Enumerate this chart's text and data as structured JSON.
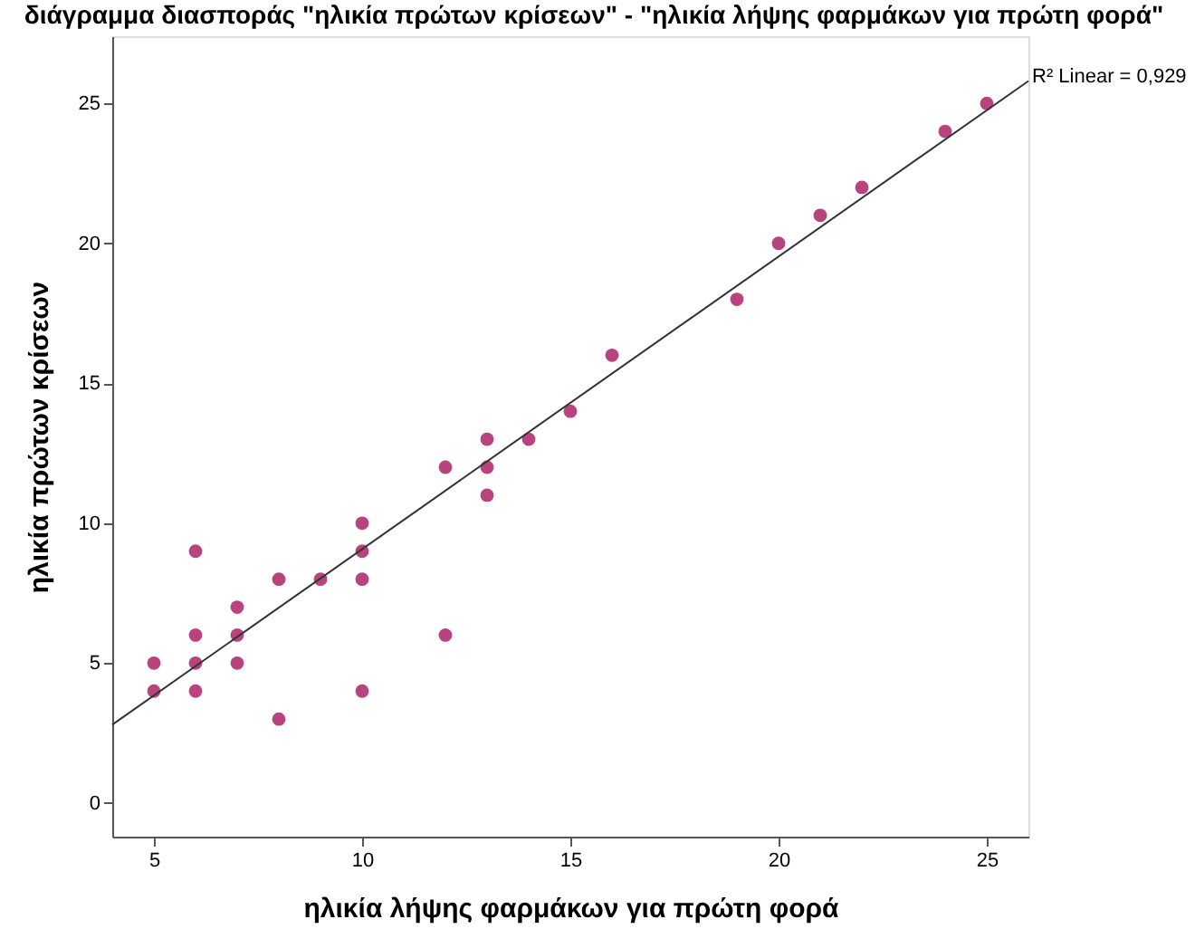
{
  "chart_data": {
    "type": "scatter",
    "title": "διάγραμμα διασποράς \"ηλικία πρώτων κρίσεων\" - \"ηλικία λήψης φαρμάκων για πρώτη φορά\"",
    "xlabel": "ηλικία λήψης φαρμάκων για πρώτη φορά",
    "ylabel": "ηλικία πρώτων κρίσεων",
    "series": [
      {
        "color": "#b8437e",
        "marker": "circle",
        "x": [
          5,
          5,
          6,
          6,
          6,
          6,
          7,
          7,
          7,
          8,
          8,
          9,
          10,
          10,
          10,
          10,
          12,
          12,
          13,
          13,
          13,
          14,
          15,
          16,
          19,
          20,
          21,
          22,
          24,
          25
        ],
        "values": [
          5,
          4,
          9,
          6,
          5,
          4,
          7,
          6,
          5,
          8,
          3,
          8,
          10,
          9,
          8,
          4,
          12,
          6,
          13,
          12,
          11,
          13,
          14,
          16,
          18,
          20,
          21,
          22,
          24,
          25
        ]
      },
      {
        "type": "line",
        "color": "#333333",
        "x": [
          4,
          26
        ],
        "values": [
          2.8,
          25.8
        ]
      }
    ],
    "annotations": [
      {
        "text": "R² Linear = 0,929",
        "x": 26,
        "y": 25.8
      }
    ],
    "xlim": [
      4,
      26
    ],
    "xticks": [
      5,
      10,
      15,
      20,
      25
    ],
    "ylim": [
      -1.2,
      27.4
    ],
    "yticks": [
      0,
      5,
      10,
      15,
      20,
      25
    ],
    "grid": false
  }
}
